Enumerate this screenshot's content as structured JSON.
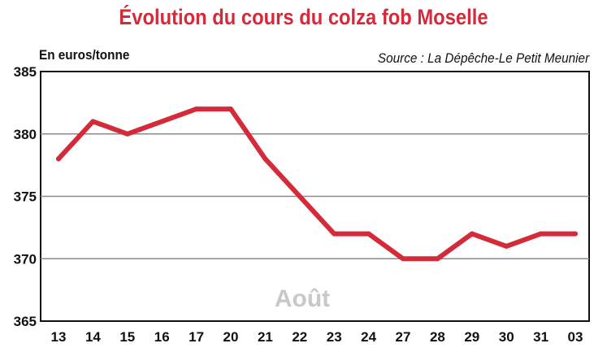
{
  "chart_data": {
    "type": "line",
    "title": "Évolution du cours du colza fob Moselle",
    "ylabel": "En euros/tonne",
    "source": "Source : La Dépêche-Le Petit Meunier",
    "annotation": "Août",
    "categories": [
      "13",
      "14",
      "15",
      "16",
      "17",
      "20",
      "21",
      "22",
      "23",
      "24",
      "27",
      "28",
      "29",
      "30",
      "31",
      "03"
    ],
    "series": [
      {
        "values": [
          378,
          381,
          380,
          381,
          382,
          382,
          378,
          375,
          372,
          372,
          370,
          370,
          372,
          371,
          372,
          372
        ]
      }
    ],
    "ylim": [
      365,
      385
    ],
    "yticks": [
      365,
      370,
      375,
      380,
      385
    ],
    "grid": true,
    "colors": {
      "line": "#d42a3a",
      "grid": "#8a8a8a",
      "title": "#d42a3a",
      "annotation": "#c8c8c8"
    }
  }
}
